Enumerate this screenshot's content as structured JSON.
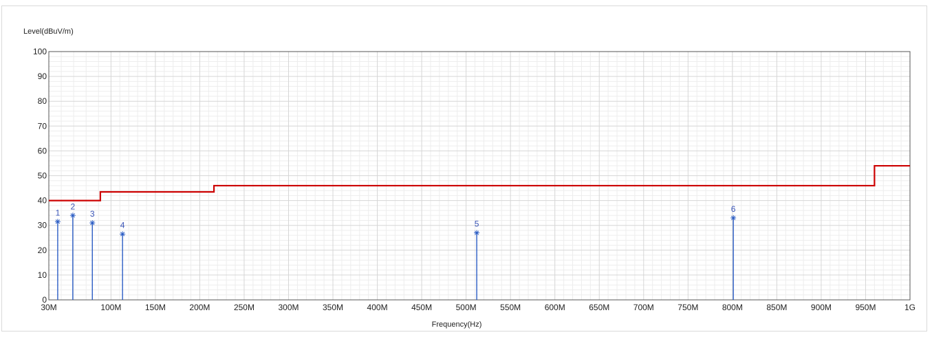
{
  "chart_data": {
    "type": "line",
    "title": "",
    "ylabel": "Level(dBuV/m)",
    "xlabel": "Frequency(Hz)",
    "xlim": [
      30,
      1000
    ],
    "ylim": [
      0,
      100
    ],
    "grid": true,
    "x_tick_values": [
      30,
      100,
      150,
      200,
      250,
      300,
      350,
      400,
      450,
      500,
      550,
      600,
      650,
      700,
      750,
      800,
      850,
      900,
      950,
      1000
    ],
    "x_tick_labels": [
      "30M",
      "100M",
      "150M",
      "200M",
      "250M",
      "300M",
      "350M",
      "400M",
      "450M",
      "500M",
      "550M",
      "600M",
      "650M",
      "700M",
      "750M",
      "800M",
      "850M",
      "900M",
      "950M",
      "1G"
    ],
    "y_tick_values": [
      0,
      10,
      20,
      30,
      40,
      50,
      60,
      70,
      80,
      90,
      100
    ],
    "y_tick_labels": [
      "0",
      "10",
      "20",
      "30",
      "40",
      "50",
      "60",
      "70",
      "80",
      "90",
      "100"
    ],
    "limit_line": {
      "color": "#cc0000",
      "points": [
        [
          30,
          40
        ],
        [
          88,
          40
        ],
        [
          88,
          43.5
        ],
        [
          216,
          43.5
        ],
        [
          216,
          46
        ],
        [
          960,
          46
        ],
        [
          960,
          54
        ],
        [
          1000,
          54
        ]
      ]
    },
    "markers": {
      "color": "#2a5cc4",
      "points": [
        {
          "label": "1",
          "x": 40,
          "y": 31.5
        },
        {
          "label": "2",
          "x": 57,
          "y": 34
        },
        {
          "label": "3",
          "x": 79,
          "y": 31
        },
        {
          "label": "4",
          "x": 113,
          "y": 26.5
        },
        {
          "label": "5",
          "x": 512,
          "y": 27
        },
        {
          "label": "6",
          "x": 801,
          "y": 33
        }
      ]
    }
  }
}
